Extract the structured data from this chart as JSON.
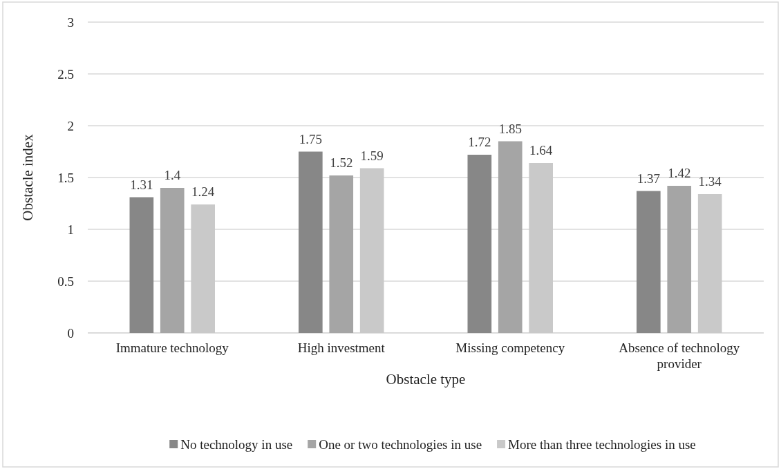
{
  "chart_data": {
    "type": "bar",
    "xlabel": "Obstacle type",
    "ylabel": "Obstacle index",
    "categories": [
      "Immature technology",
      "High investment",
      "Missing competency",
      "Absence of technology provider"
    ],
    "series": [
      {
        "name": "No technology in use",
        "color": "#878787",
        "values": [
          1.31,
          1.75,
          1.72,
          1.37
        ]
      },
      {
        "name": "One or two technologies in use",
        "color": "#a5a5a5",
        "values": [
          1.4,
          1.52,
          1.85,
          1.42
        ]
      },
      {
        "name": "More than three technologies in use",
        "color": "#c9c9c9",
        "values": [
          1.24,
          1.59,
          1.64,
          1.34
        ]
      }
    ],
    "ylim": [
      0,
      3
    ],
    "yticks": [
      0,
      0.5,
      1,
      1.5,
      2,
      2.5,
      3
    ],
    "grid": "y",
    "legend": "bottom",
    "data_labels": true
  }
}
